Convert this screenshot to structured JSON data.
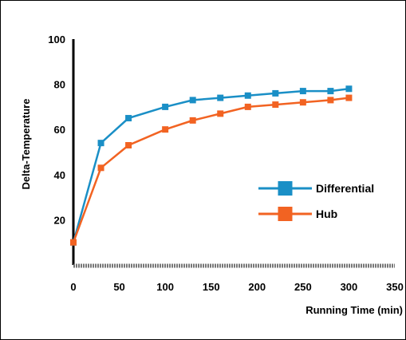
{
  "chart_data": {
    "type": "line",
    "title": "",
    "xlabel": "Running Time (min)",
    "ylabel": "Delta-Temperature",
    "xlim": [
      0,
      350
    ],
    "ylim": [
      0,
      100
    ],
    "x_ticks": [
      "0",
      "50",
      "100",
      "150",
      "200",
      "250",
      "300",
      "350"
    ],
    "y_ticks": [
      "20",
      "40",
      "60",
      "80",
      "100"
    ],
    "grid": false,
    "legend": "center-right",
    "series": [
      {
        "name": "Differential",
        "color": "#1a8fc6",
        "marker": "square",
        "x": [
          0,
          30,
          60,
          100,
          130,
          160,
          190,
          220,
          250,
          280,
          300
        ],
        "y": [
          10,
          54,
          65,
          70,
          73,
          74,
          75,
          76,
          77,
          77,
          78
        ]
      },
      {
        "name": "Hub",
        "color": "#f26322",
        "marker": "square",
        "x": [
          0,
          30,
          60,
          100,
          130,
          160,
          190,
          220,
          250,
          280,
          300
        ],
        "y": [
          10,
          43,
          53,
          60,
          64,
          67,
          70,
          71,
          72,
          73,
          74
        ]
      }
    ]
  }
}
